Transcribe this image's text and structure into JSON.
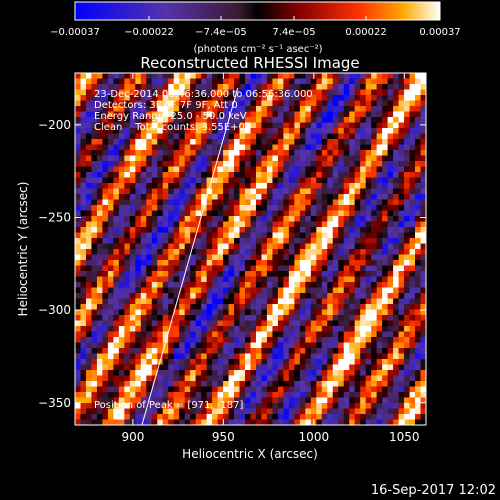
{
  "chart_data": {
    "type": "heatmap",
    "title": "Reconstructed RHESSI Image",
    "xlabel": "Heliocentric X (arcsec)",
    "ylabel": "Heliocentric Y (arcsec)",
    "xlim": [
      868,
      1062
    ],
    "ylim": [
      -362,
      -172
    ],
    "x_ticks": [
      900,
      950,
      1000,
      1050
    ],
    "y_ticks": [
      -200,
      -250,
      -300,
      -350
    ],
    "colorbar": {
      "range": [
        -0.00037,
        0.00037
      ],
      "tick_values": [
        -0.00037,
        -0.00022,
        -7.4e-05,
        7.4e-05,
        0.00022,
        0.00037
      ],
      "tick_labels": [
        "−0.00037",
        "−0.00022",
        "−7.4e−05",
        "7.4e−05",
        "0.00022",
        "0.00037"
      ],
      "units": "(photons cm⁻² s⁻¹ asec⁻²)"
    },
    "annotations": [
      "23-Dec-2014 06:46:36.000 to 06:56:36.000",
      "Detectors: 3F 6F 7F 9F, Att 0",
      "Energy Range: 25.0 - 50.0 keV",
      "Clean    Total counts: 3.55E+03",
      "Position of Peak = [971, -187]"
    ],
    "limb_line": {
      "x": [
        905,
        958
      ],
      "y": [
        -362,
        -180
      ]
    },
    "grid": false,
    "pattern": {
      "max_value": 0.00037,
      "stripe_direction": "upper-left to lower-right"
    }
  },
  "timestamp": "16-Sep-2017 12:02"
}
